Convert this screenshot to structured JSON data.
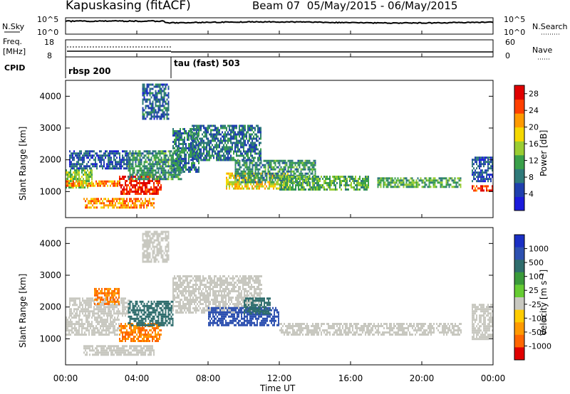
{
  "header": {
    "station": "Kapuskasing (fitACF)",
    "beam_info": "Beam 07  05/May/2015 - 06/May/2015"
  },
  "noise_panel": {
    "left_label": "N.Sky",
    "right_label": "N.Search",
    "tick_top": "10^5",
    "tick_bottom": "10^0",
    "right_tick_top": "10^5",
    "right_tick_bottom": "10^0"
  },
  "freq_panel": {
    "left_label_1": "Freq.",
    "left_label_2": "[MHz]",
    "left_tick_top": "18",
    "left_tick_bottom": "8",
    "right_label": "Nave",
    "right_tick_top": "60",
    "right_tick_bottom": "0"
  },
  "cpid": {
    "label": "CPID",
    "modes": [
      {
        "name": "rbsp 200",
        "start_hour": 0
      },
      {
        "name": "tau (fast) 503",
        "start_hour": 6
      }
    ]
  },
  "colors": {
    "power_scale": [
      "#1b1bdc",
      "#1f3fae",
      "#2f7a7a",
      "#3aa04a",
      "#9acd32",
      "#f5d800",
      "#ff9a00",
      "#ff4000",
      "#e00000"
    ],
    "velocity_scale": [
      "#1a2fc4",
      "#2d50b0",
      "#2f6d6d",
      "#3a9a3a",
      "#66cc33",
      "#c8c8c0",
      "#ffcc00",
      "#ff9900",
      "#ff6600",
      "#e00000"
    ]
  },
  "chart_data": [
    {
      "type": "heatmap",
      "name": "power",
      "ylabel": "Slant Range [km]",
      "xlim": [
        0,
        24
      ],
      "ylim": [
        180,
        4500
      ],
      "yticks": [
        "1000",
        "2000",
        "3000",
        "4000"
      ],
      "xticks": [
        "00:00",
        "04:00",
        "08:00",
        "12:00",
        "16:00",
        "20:00",
        "00:00"
      ],
      "colorbar": {
        "label": "Power [dB]",
        "ticks": [
          "4",
          "8",
          "12",
          "16",
          "20",
          "24",
          "28"
        ],
        "range": [
          0,
          30
        ]
      },
      "blobs": [
        {
          "t": [
            0.0,
            1.5
          ],
          "r": [
            1100,
            1700
          ],
          "v": 14
        },
        {
          "t": [
            0.0,
            3.0
          ],
          "r": [
            1150,
            1350
          ],
          "v": 22
        },
        {
          "t": [
            0.2,
            3.6
          ],
          "r": [
            1700,
            2300
          ],
          "v": 6
        },
        {
          "t": [
            1.0,
            5.0
          ],
          "r": [
            500,
            800
          ],
          "v": 22
        },
        {
          "t": [
            3.0,
            5.4
          ],
          "r": [
            900,
            1500
          ],
          "v": 27
        },
        {
          "t": [
            3.5,
            6.5
          ],
          "r": [
            1400,
            2300
          ],
          "v": 10
        },
        {
          "t": [
            4.3,
            5.8
          ],
          "r": [
            3300,
            4400
          ],
          "v": 7
        },
        {
          "t": [
            6.0,
            7.5
          ],
          "r": [
            1600,
            3000
          ],
          "v": 9
        },
        {
          "t": [
            7.0,
            11.0
          ],
          "r": [
            2000,
            3100
          ],
          "v": 8
        },
        {
          "t": [
            9.0,
            12.5
          ],
          "r": [
            1100,
            1600
          ],
          "v": 18
        },
        {
          "t": [
            9.5,
            14.0
          ],
          "r": [
            1300,
            2000
          ],
          "v": 10
        },
        {
          "t": [
            12.0,
            17.0
          ],
          "r": [
            1050,
            1500
          ],
          "v": 12
        },
        {
          "t": [
            17.5,
            22.2
          ],
          "r": [
            1150,
            1450
          ],
          "v": 12
        },
        {
          "t": [
            22.8,
            24.0
          ],
          "r": [
            1000,
            1200
          ],
          "v": 26
        },
        {
          "t": [
            22.8,
            24.0
          ],
          "r": [
            1300,
            2100
          ],
          "v": 6
        }
      ]
    },
    {
      "type": "heatmap",
      "name": "velocity",
      "ylabel": "Slant Range [km]",
      "xlabel": "Time UT",
      "xlim": [
        0,
        24
      ],
      "ylim": [
        180,
        4500
      ],
      "yticks": [
        "1000",
        "2000",
        "3000",
        "4000"
      ],
      "xticks": [
        "00:00",
        "04:00",
        "08:00",
        "12:00",
        "16:00",
        "20:00",
        "00:00"
      ],
      "colorbar": {
        "label": "Velocity [m s⁻¹]",
        "ticks": [
          "1000",
          "500",
          "100",
          "25",
          "-25",
          "-100",
          "-500",
          "-1000"
        ]
      },
      "blobs": [
        {
          "t": [
            0.0,
            3.0
          ],
          "r": [
            1100,
            1700
          ],
          "v": 0
        },
        {
          "t": [
            0.2,
            3.6
          ],
          "r": [
            1700,
            2300
          ],
          "v": 0
        },
        {
          "t": [
            1.0,
            5.0
          ],
          "r": [
            500,
            800
          ],
          "v": 0
        },
        {
          "t": [
            1.6,
            3.0
          ],
          "r": [
            2100,
            2600
          ],
          "v": -300
        },
        {
          "t": [
            3.0,
            5.4
          ],
          "r": [
            900,
            1500
          ],
          "v": -300
        },
        {
          "t": [
            3.5,
            6.0
          ],
          "r": [
            1400,
            2200
          ],
          "v": 150
        },
        {
          "t": [
            4.3,
            5.8
          ],
          "r": [
            3400,
            4400
          ],
          "v": 0
        },
        {
          "t": [
            6.0,
            11.0
          ],
          "r": [
            1800,
            3000
          ],
          "v": 0
        },
        {
          "t": [
            8.0,
            12.0
          ],
          "r": [
            1400,
            2000
          ],
          "v": 600
        },
        {
          "t": [
            10.0,
            11.5
          ],
          "r": [
            1800,
            2300
          ],
          "v": 120
        },
        {
          "t": [
            12.0,
            22.2
          ],
          "r": [
            1150,
            1500
          ],
          "v": 0
        },
        {
          "t": [
            22.8,
            24.0
          ],
          "r": [
            1000,
            2100
          ],
          "v": 0
        }
      ]
    }
  ]
}
